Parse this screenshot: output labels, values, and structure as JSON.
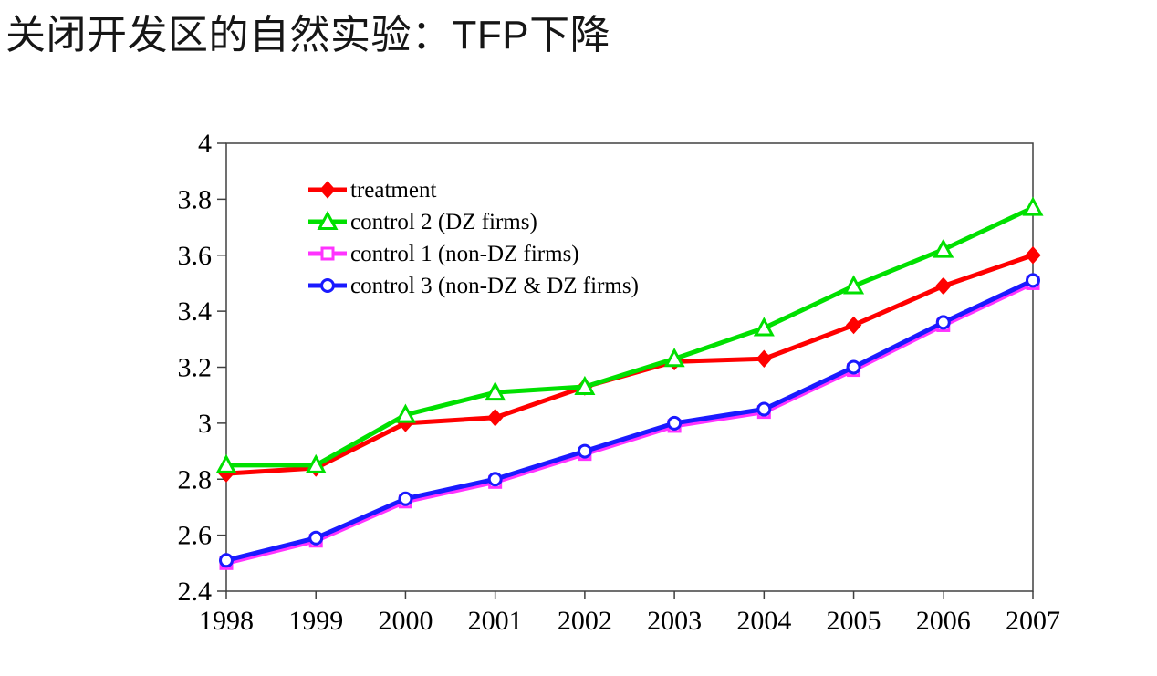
{
  "page": {
    "title": "关闭开发区的自然实验：TFP下降",
    "background_color": "#ffffff"
  },
  "chart_data": {
    "type": "line",
    "title": "",
    "xlabel": "",
    "ylabel": "",
    "categories": [
      "1998",
      "1999",
      "2000",
      "2001",
      "2002",
      "2003",
      "2004",
      "2005",
      "2006",
      "2007"
    ],
    "series": [
      {
        "name": "treatment",
        "color": "#ff0000",
        "marker": "diamond",
        "marker_style": "filled",
        "values": [
          2.82,
          2.84,
          3.0,
          3.02,
          3.13,
          3.22,
          3.23,
          3.35,
          3.49,
          3.6
        ]
      },
      {
        "name": "control 2 (DZ firms)",
        "color": "#00e000",
        "marker": "triangle",
        "marker_style": "open",
        "values": [
          2.85,
          2.85,
          3.03,
          3.11,
          3.13,
          3.23,
          3.34,
          3.49,
          3.62,
          3.77
        ]
      },
      {
        "name": "control 1 (non-DZ firms)",
        "color": "#ff33ff",
        "marker": "square",
        "marker_style": "open",
        "values": [
          2.5,
          2.58,
          2.72,
          2.79,
          2.89,
          2.99,
          3.04,
          3.19,
          3.35,
          3.5
        ]
      },
      {
        "name": "control 3 (non-DZ & DZ firms)",
        "color": "#1a1aff",
        "marker": "circle",
        "marker_style": "open",
        "values": [
          2.51,
          2.59,
          2.73,
          2.8,
          2.9,
          3.0,
          3.05,
          3.2,
          3.36,
          3.51
        ]
      }
    ],
    "ylim": [
      2.4,
      4.0
    ],
    "ytick_step": 0.2,
    "ytick_labels": [
      "2.4",
      "2.6",
      "2.8",
      "3",
      "3.2",
      "3.4",
      "3.6",
      "3.8",
      "4"
    ],
    "grid": false,
    "plot_border": true,
    "legend_position": "top-left-inside",
    "axis_color": "#404040"
  }
}
